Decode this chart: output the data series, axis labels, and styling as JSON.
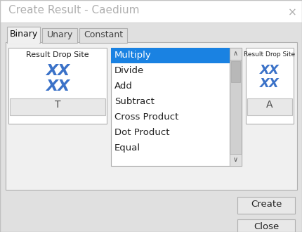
{
  "title": "Create Result - Caedium",
  "title_color": "#b0b0b0",
  "title_bg": "#f5f5f5",
  "bg_color": "#e0e0e0",
  "dialog_bg": "#f0f0f0",
  "tabs": [
    "Binary",
    "Unary",
    "Constant"
  ],
  "active_tab": 0,
  "tab_bg_active": "#f0f0f0",
  "tab_bg_inactive": "#e0e0e0",
  "left_box_label": "Result Drop Site",
  "right_box_label": "Result Drop Site",
  "left_box_letter": "T",
  "right_box_letter": "A",
  "xx_color": "#3b72c8",
  "box_border": "#b0b0b0",
  "dropdown_items": [
    "Multiply",
    "Divide",
    "Add",
    "Subtract",
    "Cross Product",
    "Dot Product",
    "Equal"
  ],
  "selected_item": "Multiply",
  "selected_bg": "#1a82e2",
  "selected_fg": "#ffffff",
  "dropdown_bg": "#ffffff",
  "dropdown_border": "#aaaaaa",
  "button_bg": "#e8e8e8",
  "button_border": "#b0b0b0",
  "create_button": "Create",
  "close_button": "Close",
  "item_color": "#222222",
  "letter_box_bg": "#e8e8e8",
  "letter_color": "#444444",
  "scrollbar_bg": "#d0d0d0",
  "scrollbar_thumb": "#b8b8b8",
  "titlebar_bg": "#ffffff",
  "outer_border": "#c0c0c0"
}
